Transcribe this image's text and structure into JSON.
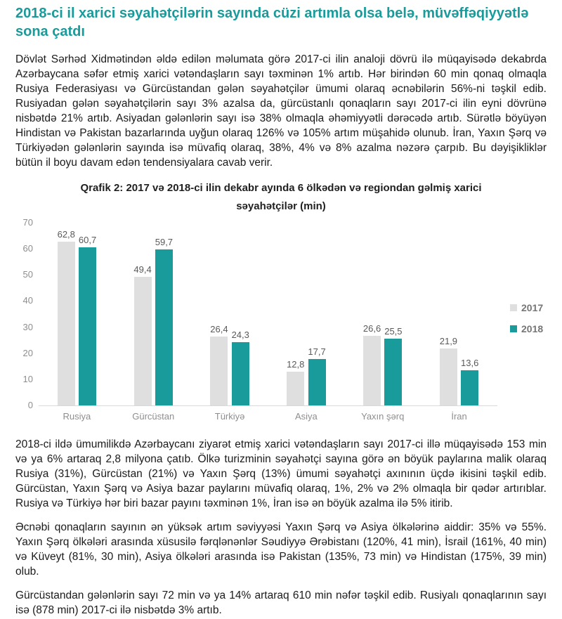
{
  "document": {
    "title": "2018-ci il xarici səyahətçilərin sayında cüzi artımla olsa belə, müvəffəqiyyətlə sona çatdı",
    "title_color": "#1A9B9B",
    "paragraph_1": "Dövlət Sərhəd Xidmətindən əldə edilən məlumata görə 2017-ci ilin analoji dövrü ilə müqayisədə dekabrda Azərbaycana səfər etmiş xarici vətəndaşların sayı təxminən 1% artıb. Hər birindən 60 min qonaq olmaqla Rusiya Federasiyası və Gürcüstandan gələn səyahətçilər ümumi olaraq əcnəbilərin 56%-ni təşkil edib. Rusiyadan gələn səyahətçilərin sayı 3% azalsa da, gürcüstanlı qonaqların sayı 2017-ci ilin eyni dövrünə nisbətdə 21% artıb. Asiyadan gələnlərin sayı isə 38% olmaqla əhəmiyyətli dərəcədə artıb. Sürətlə böyüyən Hindistan və Pakistan bazarlarında uyğun olaraq 126% və 105% artım müşahidə olunub. İran, Yaxın Şərq və Türkiyədən gələnlərin sayında isə müvafiq olaraq, 38%, 4% və 8% azalma nəzərə çarpıb. Bu dəyişikliklər bütün il boyu davam edən tendensiyalara cavab verir.",
    "paragraph_2": "2018-ci ildə ümumilikdə Azərbaycanı ziyarət etmiş xarici vətəndaşların sayı 2017-ci illə müqayisədə 153 min və ya 6% artaraq 2,8 milyona çatıb. Ölkə turizminin səyahətçi sayına görə ən böyük paylarına malik olaraq Rusiya (31%), Gürcüstan (21%) və Yaxın Şərq (13%) ümumi səyahətçi axınının üçdə ikisini təşkil edib. Gürcüstan, Yaxın Şərq və Asiya bazar paylarını müvafiq olaraq, 1%, 2% və 2% olmaqla bir qədər artırıblar. Rusiya və Türkiyə hər biri bazar payını təxminən 1%, İran isə ən böyük azalma ilə 5% itirib.",
    "paragraph_3": "Əcnəbi qonaqların sayının ən yüksək artım səviyyəsi Yaxın Şərq və Asiya ölkələrinə aiddir: 35% və 55%. Yaxın Şərq ölkələri arasında xüsusilə fərqlənənlər Səudiyyə Ərəbistanı (120%, 41 min), İsrail (161%, 40 min) və Küveyt (81%, 30 min), Asiya ölkələri arasında isə Pakistan (135%, 73 min) və Hindistan (175%, 39 min) olub.",
    "paragraph_4": "Gürcüstandan gələnlərin sayı 72 min və ya 14% artaraq 610 min nəfər təşkil edib. Rusiyalı qonaqlarının sayı isə (878 min) 2017-ci ilə nisbətdə 3% artıb."
  },
  "chart_data": {
    "type": "bar",
    "title": "Qrafik 2: 2017 və 2018-ci ilin dekabr ayında 6 ölkədən və regiondan gəlmiş xarici səyahətçilər (min)",
    "categories": [
      "Rusiya",
      "Gürcüstan",
      "Türkiyə",
      "Asiya",
      "Yaxın şərq",
      "İran"
    ],
    "series": [
      {
        "name": "2017",
        "color": "#DFDFDF",
        "values": [
          62.8,
          49.4,
          26.4,
          12.8,
          26.6,
          21.9
        ],
        "value_labels": [
          "62,8",
          "49,4",
          "26,4",
          "12,8",
          "26,6",
          "21,9"
        ]
      },
      {
        "name": "2018",
        "color": "#1A9B9B",
        "values": [
          60.7,
          59.7,
          24.3,
          17.7,
          25.5,
          13.6
        ],
        "value_labels": [
          "60,7",
          "59,7",
          "24,3",
          "17,7",
          "25,5",
          "13,6"
        ]
      }
    ],
    "xlabel": "",
    "ylabel": "",
    "ylim": [
      0,
      70
    ],
    "yticks": [
      0,
      10,
      20,
      30,
      40,
      50,
      60,
      70
    ],
    "grid": false,
    "legend_position": "right",
    "decimal_separator": ","
  }
}
